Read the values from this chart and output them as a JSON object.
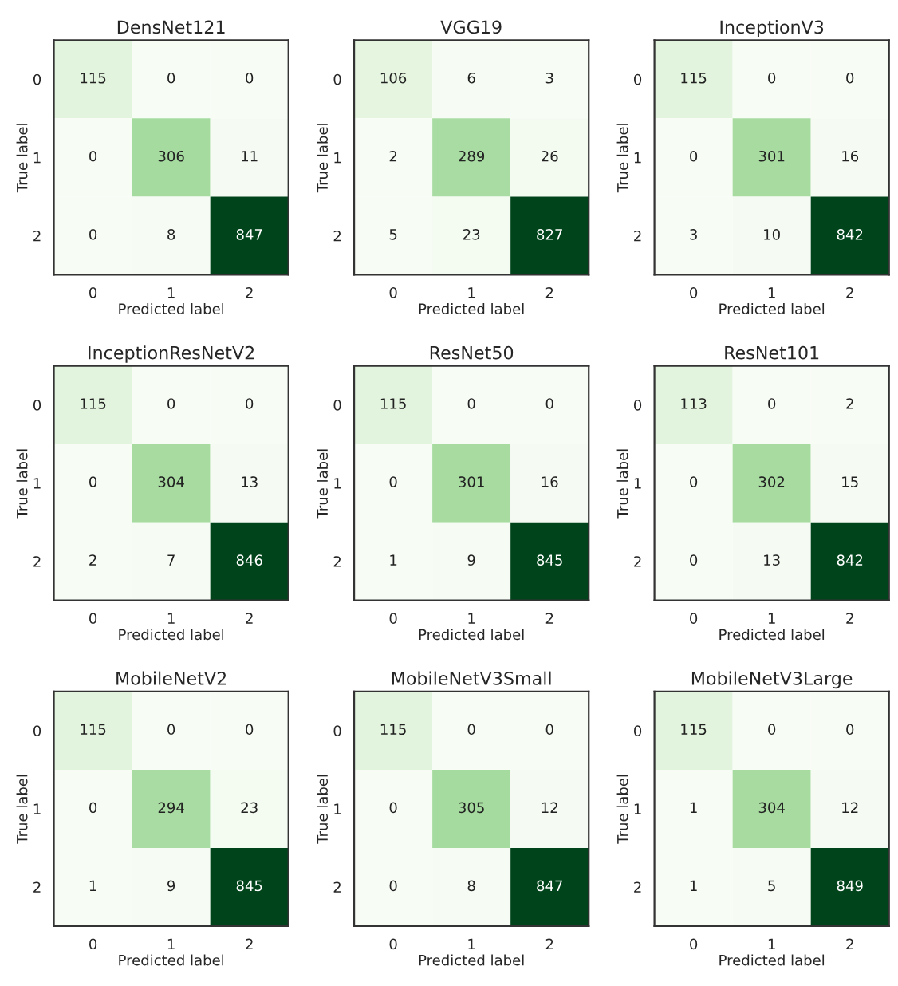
{
  "chart_data": [
    {
      "type": "heatmap",
      "title": "DensNet121",
      "xlabel": "Predicted label",
      "ylabel": "True label",
      "categories": [
        "0",
        "1",
        "2"
      ],
      "y_categories": [
        "0",
        "1",
        "2"
      ],
      "cells": [
        [
          115,
          0,
          0
        ],
        [
          0,
          306,
          11
        ],
        [
          0,
          8,
          847
        ]
      ],
      "data_labels": true
    },
    {
      "type": "heatmap",
      "title": "VGG19",
      "xlabel": "Predicted label",
      "ylabel": "True label",
      "categories": [
        "0",
        "1",
        "2"
      ],
      "y_categories": [
        "0",
        "1",
        "2"
      ],
      "cells": [
        [
          106,
          6,
          3
        ],
        [
          2,
          289,
          26
        ],
        [
          5,
          23,
          827
        ]
      ],
      "data_labels": true
    },
    {
      "type": "heatmap",
      "title": "InceptionV3",
      "xlabel": "Predicted label",
      "ylabel": "True label",
      "categories": [
        "0",
        "1",
        "2"
      ],
      "y_categories": [
        "0",
        "1",
        "2"
      ],
      "cells": [
        [
          115,
          0,
          0
        ],
        [
          0,
          301,
          16
        ],
        [
          3,
          10,
          842
        ]
      ],
      "data_labels": true
    },
    {
      "type": "heatmap",
      "title": "InceptionResNetV2",
      "xlabel": "Predicted label",
      "ylabel": "True label",
      "categories": [
        "0",
        "1",
        "2"
      ],
      "y_categories": [
        "0",
        "1",
        "2"
      ],
      "cells": [
        [
          115,
          0,
          0
        ],
        [
          0,
          304,
          13
        ],
        [
          2,
          7,
          846
        ]
      ],
      "data_labels": true
    },
    {
      "type": "heatmap",
      "title": "ResNet50",
      "xlabel": "Predicted label",
      "ylabel": "True label",
      "categories": [
        "0",
        "1",
        "2"
      ],
      "y_categories": [
        "0",
        "1",
        "2"
      ],
      "cells": [
        [
          115,
          0,
          0
        ],
        [
          0,
          301,
          16
        ],
        [
          1,
          9,
          845
        ]
      ],
      "data_labels": true
    },
    {
      "type": "heatmap",
      "title": "ResNet101",
      "xlabel": "Predicted label",
      "ylabel": "True label",
      "categories": [
        "0",
        "1",
        "2"
      ],
      "y_categories": [
        "0",
        "1",
        "2"
      ],
      "cells": [
        [
          113,
          0,
          2
        ],
        [
          0,
          302,
          15
        ],
        [
          0,
          13,
          842
        ]
      ],
      "data_labels": true
    },
    {
      "type": "heatmap",
      "title": "MobileNetV2",
      "xlabel": "Predicted label",
      "ylabel": "True label",
      "categories": [
        "0",
        "1",
        "2"
      ],
      "y_categories": [
        "0",
        "1",
        "2"
      ],
      "cells": [
        [
          115,
          0,
          0
        ],
        [
          0,
          294,
          23
        ],
        [
          1,
          9,
          845
        ]
      ],
      "data_labels": true
    },
    {
      "type": "heatmap",
      "title": "MobileNetV3Small",
      "xlabel": "Predicted label",
      "ylabel": "True label",
      "categories": [
        "0",
        "1",
        "2"
      ],
      "y_categories": [
        "0",
        "1",
        "2"
      ],
      "cells": [
        [
          115,
          0,
          0
        ],
        [
          0,
          305,
          12
        ],
        [
          0,
          8,
          847
        ]
      ],
      "data_labels": true
    },
    {
      "type": "heatmap",
      "title": "MobileNetV3Large",
      "xlabel": "Predicted label",
      "ylabel": "True label",
      "categories": [
        "0",
        "1",
        "2"
      ],
      "y_categories": [
        "0",
        "1",
        "2"
      ],
      "cells": [
        [
          115,
          0,
          0
        ],
        [
          1,
          304,
          12
        ],
        [
          1,
          5,
          849
        ]
      ],
      "data_labels": true
    }
  ]
}
